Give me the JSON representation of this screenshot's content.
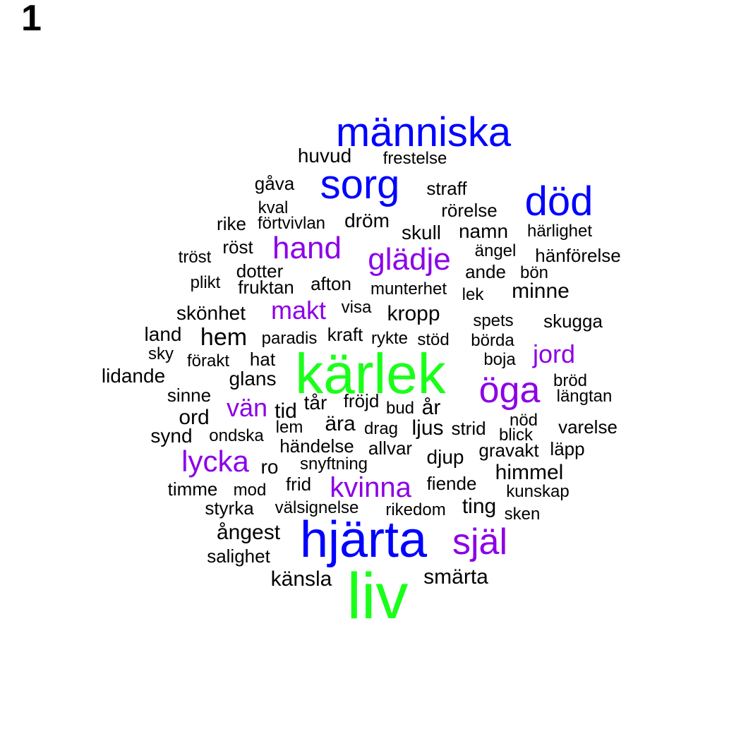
{
  "panel_label": "1",
  "colors": {
    "tier1": "#1aff1a",
    "tier2": "#0000ff",
    "tier3": "#8c00e6",
    "tier4": "#000000"
  },
  "words": [
    {
      "text": "liv",
      "tier": 1
    },
    {
      "text": "kärlek",
      "tier": 1
    },
    {
      "text": "hjärta",
      "tier": 2
    },
    {
      "text": "människa",
      "tier": 2
    },
    {
      "text": "sorg",
      "tier": 2
    },
    {
      "text": "död",
      "tier": 2
    },
    {
      "text": "själ",
      "tier": 3
    },
    {
      "text": "öga",
      "tier": 3
    },
    {
      "text": "glädje",
      "tier": 3
    },
    {
      "text": "hand",
      "tier": 3
    },
    {
      "text": "lycka",
      "tier": 3
    },
    {
      "text": "kvinna",
      "tier": 3
    },
    {
      "text": "makt",
      "tier": 3
    },
    {
      "text": "jord",
      "tier": 3
    },
    {
      "text": "vän",
      "tier": 3
    },
    {
      "text": "huvud",
      "tier": 4
    },
    {
      "text": "frestelse",
      "tier": 4
    },
    {
      "text": "gåva",
      "tier": 4
    },
    {
      "text": "straff",
      "tier": 4
    },
    {
      "text": "kval",
      "tier": 4
    },
    {
      "text": "rörelse",
      "tier": 4
    },
    {
      "text": "rike",
      "tier": 4
    },
    {
      "text": "förtvivlan",
      "tier": 4
    },
    {
      "text": "dröm",
      "tier": 4
    },
    {
      "text": "skull",
      "tier": 4
    },
    {
      "text": "namn",
      "tier": 4
    },
    {
      "text": "härlighet",
      "tier": 4
    },
    {
      "text": "tröst",
      "tier": 4
    },
    {
      "text": "röst",
      "tier": 4
    },
    {
      "text": "ängel",
      "tier": 4
    },
    {
      "text": "hänförelse",
      "tier": 4
    },
    {
      "text": "dotter",
      "tier": 4
    },
    {
      "text": "ande",
      "tier": 4
    },
    {
      "text": "bön",
      "tier": 4
    },
    {
      "text": "plikt",
      "tier": 4
    },
    {
      "text": "fruktan",
      "tier": 4
    },
    {
      "text": "afton",
      "tier": 4
    },
    {
      "text": "munterhet",
      "tier": 4
    },
    {
      "text": "lek",
      "tier": 4
    },
    {
      "text": "minne",
      "tier": 4
    },
    {
      "text": "skönhet",
      "tier": 4
    },
    {
      "text": "visa",
      "tier": 4
    },
    {
      "text": "kropp",
      "tier": 4
    },
    {
      "text": "spets",
      "tier": 4
    },
    {
      "text": "skugga",
      "tier": 4
    },
    {
      "text": "land",
      "tier": 4
    },
    {
      "text": "hem",
      "tier": 4
    },
    {
      "text": "paradis",
      "tier": 4
    },
    {
      "text": "kraft",
      "tier": 4
    },
    {
      "text": "rykte",
      "tier": 4
    },
    {
      "text": "stöd",
      "tier": 4
    },
    {
      "text": "börda",
      "tier": 4
    },
    {
      "text": "sky",
      "tier": 4
    },
    {
      "text": "förakt",
      "tier": 4
    },
    {
      "text": "hat",
      "tier": 4
    },
    {
      "text": "boja",
      "tier": 4
    },
    {
      "text": "lidande",
      "tier": 4
    },
    {
      "text": "glans",
      "tier": 4
    },
    {
      "text": "bröd",
      "tier": 4
    },
    {
      "text": "sinne",
      "tier": 4
    },
    {
      "text": "längtan",
      "tier": 4
    },
    {
      "text": "tår",
      "tier": 4
    },
    {
      "text": "fröjd",
      "tier": 4
    },
    {
      "text": "bud",
      "tier": 4
    },
    {
      "text": "år",
      "tier": 4
    },
    {
      "text": "ord",
      "tier": 4
    },
    {
      "text": "tid",
      "tier": 4
    },
    {
      "text": "nöd",
      "tier": 4
    },
    {
      "text": "ära",
      "tier": 4
    },
    {
      "text": "synd",
      "tier": 4
    },
    {
      "text": "ondska",
      "tier": 4
    },
    {
      "text": "lem",
      "tier": 4
    },
    {
      "text": "drag",
      "tier": 4
    },
    {
      "text": "ljus",
      "tier": 4
    },
    {
      "text": "strid",
      "tier": 4
    },
    {
      "text": "blick",
      "tier": 4
    },
    {
      "text": "varelse",
      "tier": 4
    },
    {
      "text": "händelse",
      "tier": 4
    },
    {
      "text": "allvar",
      "tier": 4
    },
    {
      "text": "gravakt",
      "tier": 4
    },
    {
      "text": "läpp",
      "tier": 4
    },
    {
      "text": "djup",
      "tier": 4
    },
    {
      "text": "ro",
      "tier": 4
    },
    {
      "text": "snyftning",
      "tier": 4
    },
    {
      "text": "himmel",
      "tier": 4
    },
    {
      "text": "timme",
      "tier": 4
    },
    {
      "text": "mod",
      "tier": 4
    },
    {
      "text": "frid",
      "tier": 4
    },
    {
      "text": "fiende",
      "tier": 4
    },
    {
      "text": "kunskap",
      "tier": 4
    },
    {
      "text": "styrka",
      "tier": 4
    },
    {
      "text": "välsignelse",
      "tier": 4
    },
    {
      "text": "rikedom",
      "tier": 4
    },
    {
      "text": "ting",
      "tier": 4
    },
    {
      "text": "sken",
      "tier": 4
    },
    {
      "text": "ångest",
      "tier": 4
    },
    {
      "text": "salighet",
      "tier": 4
    },
    {
      "text": "känsla",
      "tier": 4
    },
    {
      "text": "smärta",
      "tier": 4
    }
  ]
}
